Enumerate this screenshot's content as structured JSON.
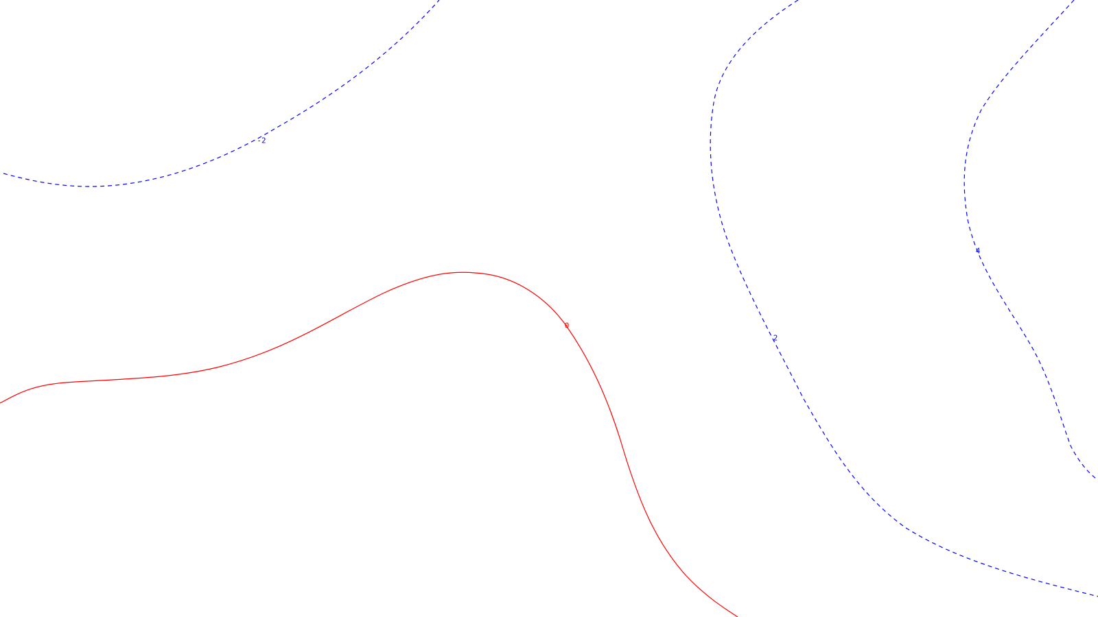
{
  "contour_plot": {
    "background_color": "#ffffff",
    "contours": [
      {
        "id": "contour-neg2",
        "label": "-2",
        "color": "#0000ff",
        "style": "dashed"
      },
      {
        "id": "contour-zero",
        "label": "0",
        "color": "#ff0000",
        "style": "solid"
      },
      {
        "id": "contour-pos2",
        "label": "2",
        "color": "#0000ff",
        "style": "dashed"
      },
      {
        "id": "contour-pos4",
        "label": "4",
        "color": "#0000ff",
        "style": "dashed"
      }
    ]
  }
}
